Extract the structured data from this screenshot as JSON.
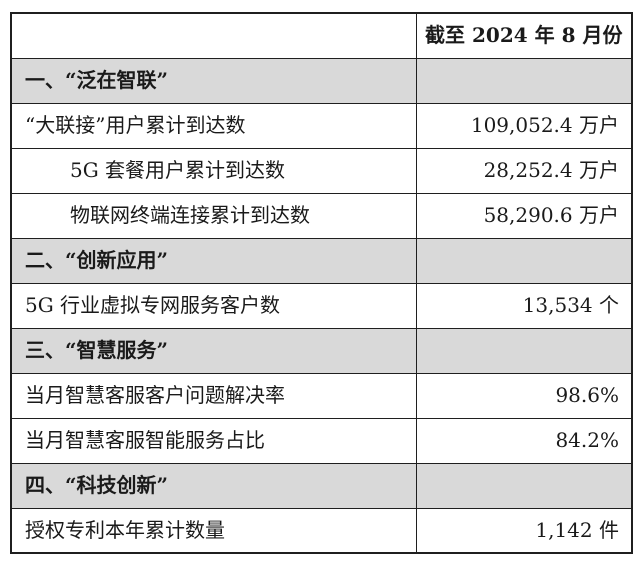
{
  "table": {
    "header": {
      "label_col": "",
      "value_col": "截至 2024 年 8 月份"
    },
    "rows": [
      {
        "type": "section",
        "label": "一、“泛在智联”",
        "value": ""
      },
      {
        "type": "data",
        "label": "“大联接”用户累计到达数",
        "value": "109,052.4 万户",
        "indent": 0
      },
      {
        "type": "data",
        "label": "5G 套餐用户累计到达数",
        "value": "28,252.4 万户",
        "indent": 1
      },
      {
        "type": "data",
        "label": "物联网终端连接累计到达数",
        "value": "58,290.6 万户",
        "indent": 1
      },
      {
        "type": "section",
        "label": "二、“创新应用”",
        "value": ""
      },
      {
        "type": "data",
        "label": "5G 行业虚拟专网服务客户数",
        "value": "13,534 个",
        "indent": 0
      },
      {
        "type": "section",
        "label": "三、“智慧服务”",
        "value": ""
      },
      {
        "type": "data",
        "label": "当月智慧客服客户问题解决率",
        "value": "98.6%",
        "indent": 0
      },
      {
        "type": "data",
        "label": "当月智慧客服智能服务占比",
        "value": "84.2%",
        "indent": 0
      },
      {
        "type": "section",
        "label": "四、“科技创新”",
        "value": ""
      },
      {
        "type": "data",
        "label": "授权专利本年累计数量",
        "value": "1,142 件",
        "indent": 0
      }
    ],
    "colors": {
      "section_bg": "#d9d9d9",
      "border": "#1f1f1f",
      "text": "#1a1a1a",
      "page_bg": "#ffffff"
    }
  }
}
